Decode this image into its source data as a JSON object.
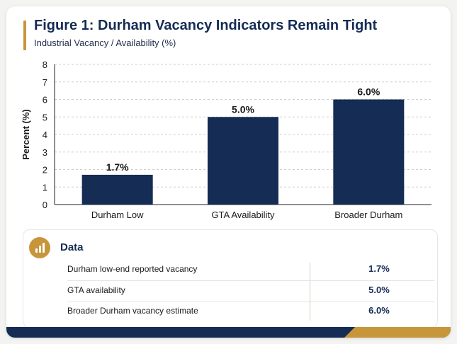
{
  "title": "Figure 1: Durham Vacancy Indicators Remain Tight",
  "subtitle": "Industrial Vacancy / Availability (%)",
  "colors": {
    "navy": "#152c54",
    "gold": "#c7963a"
  },
  "chart_data": {
    "type": "bar",
    "categories": [
      "Durham Low",
      "GTA Availability",
      "Broader Durham"
    ],
    "values": [
      1.7,
      5.0,
      6.0
    ],
    "data_labels": [
      "1.7%",
      "5.0%",
      "6.0%"
    ],
    "ylabel": "Percent (%)",
    "ylim": [
      0,
      8
    ],
    "yticks": [
      "0",
      "1",
      "2",
      "3",
      "4",
      "5",
      "6",
      "7",
      "8"
    ],
    "grid": true
  },
  "data_table": {
    "heading": "Data",
    "icon": "bar-chart-icon",
    "rows": [
      {
        "label": "Durham low-end reported vacancy",
        "value": "1.7%"
      },
      {
        "label": "GTA availability",
        "value": "5.0%"
      },
      {
        "label": "Broader Durham vacancy estimate",
        "value": "6.0%"
      }
    ]
  }
}
